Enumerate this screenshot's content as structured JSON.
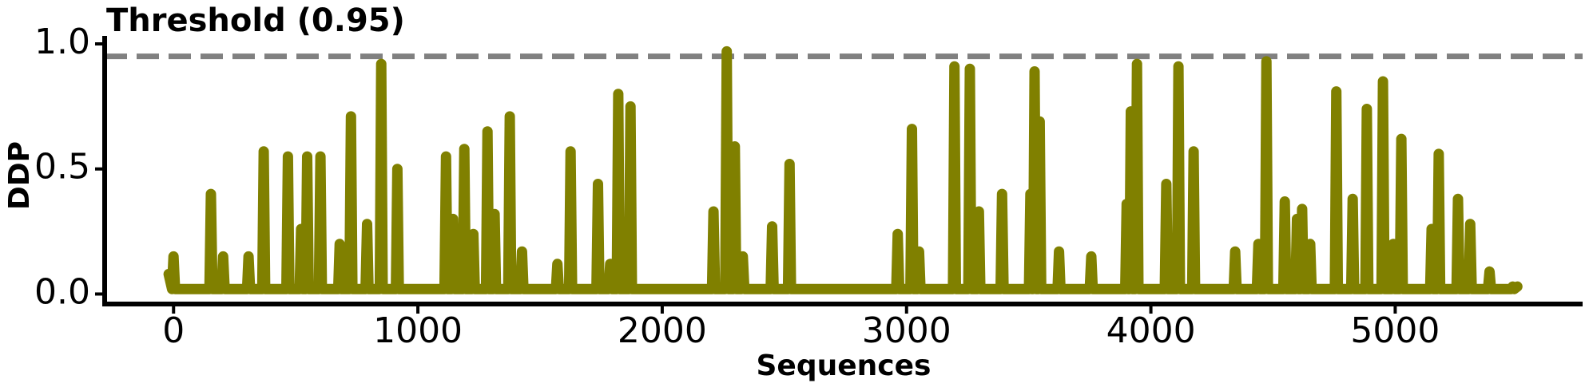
{
  "chart_data": {
    "type": "line",
    "xlabel": "Sequences",
    "ylabel": "DDP",
    "threshold": {
      "value": 0.95,
      "label": "Threshold (0.95)"
    },
    "color": "#808000",
    "xlim": [
      -282,
      5767
    ],
    "ylim": [
      -0.04,
      1.0
    ],
    "xticks": [
      0,
      1000,
      2000,
      3000,
      4000,
      5000
    ],
    "yticks": [
      {
        "value": 0,
        "label": "0.0"
      },
      {
        "value": 0.5,
        "label": "0.5"
      },
      {
        "value": 1,
        "label": "1.0"
      }
    ],
    "x": [
      -20,
      -6,
      0,
      6,
      147,
      153,
      159,
      197,
      203,
      209,
      301,
      307,
      313,
      363,
      369,
      375,
      462,
      468,
      474,
      516,
      522,
      528,
      541,
      547,
      553,
      595,
      601,
      607,
      674,
      680,
      686,
      720,
      726,
      732,
      786,
      792,
      798,
      844,
      850,
      856,
      910,
      916,
      922,
      1109,
      1115,
      1121,
      1138,
      1144,
      1150,
      1184,
      1190,
      1196,
      1221,
      1227,
      1233,
      1279,
      1285,
      1291,
      1308,
      1314,
      1320,
      1370,
      1376,
      1382,
      1420,
      1426,
      1432,
      1565,
      1571,
      1577,
      1619,
      1625,
      1631,
      1731,
      1737,
      1743,
      1781,
      1787,
      1793,
      1814,
      1820,
      1826,
      1864,
      1870,
      1876,
      2204,
      2210,
      2216,
      2258,
      2264,
      2270,
      2291,
      2297,
      2303,
      2324,
      2330,
      2336,
      2444,
      2450,
      2456,
      2515,
      2521,
      2527,
      2958,
      2964,
      2970,
      3016,
      3022,
      3028,
      3045,
      3051,
      3057,
      3190,
      3196,
      3202,
      3253,
      3259,
      3265,
      3290,
      3296,
      3302,
      3385,
      3391,
      3397,
      3501,
      3507,
      3513,
      3518,
      3524,
      3530,
      3539,
      3545,
      3551,
      3618,
      3624,
      3630,
      3750,
      3756,
      3762,
      3895,
      3901,
      3907,
      3912,
      3918,
      3924,
      3937,
      3943,
      3949,
      4057,
      4063,
      4069,
      4107,
      4113,
      4119,
      4169,
      4175,
      4181,
      4339,
      4345,
      4351,
      4434,
      4440,
      4446,
      4467,
      4473,
      4479,
      4542,
      4548,
      4554,
      4592,
      4598,
      4604,
      4613,
      4619,
      4625,
      4646,
      4652,
      4658,
      4753,
      4759,
      4765,
      4820,
      4826,
      4832,
      4878,
      4884,
      4890,
      4944,
      4950,
      4956,
      4986,
      4992,
      4998,
      5019,
      5025,
      5031,
      5143,
      5149,
      5155,
      5172,
      5178,
      5184,
      5251,
      5257,
      5263,
      5301,
      5307,
      5313,
      5380,
      5386,
      5392,
      5475,
      5481,
      5487,
      5500
    ],
    "values": [
      0.08,
      0.02,
      0.15,
      0.02,
      0.02,
      0.4,
      0.02,
      0.02,
      0.15,
      0.02,
      0.02,
      0.15,
      0.02,
      0.02,
      0.57,
      0.02,
      0.02,
      0.55,
      0.02,
      0.02,
      0.26,
      0.02,
      0.02,
      0.55,
      0.02,
      0.02,
      0.55,
      0.02,
      0.02,
      0.2,
      0.02,
      0.02,
      0.71,
      0.02,
      0.02,
      0.28,
      0.02,
      0.02,
      0.92,
      0.02,
      0.02,
      0.5,
      0.02,
      0.02,
      0.55,
      0.02,
      0.02,
      0.3,
      0.02,
      0.02,
      0.58,
      0.02,
      0.02,
      0.24,
      0.02,
      0.02,
      0.65,
      0.02,
      0.02,
      0.32,
      0.02,
      0.02,
      0.71,
      0.02,
      0.02,
      0.17,
      0.02,
      0.02,
      0.12,
      0.02,
      0.02,
      0.57,
      0.02,
      0.02,
      0.44,
      0.02,
      0.02,
      0.12,
      0.02,
      0.02,
      0.8,
      0.02,
      0.02,
      0.75,
      0.02,
      0.02,
      0.33,
      0.02,
      0.02,
      0.97,
      0.02,
      0.02,
      0.59,
      0.02,
      0.02,
      0.15,
      0.02,
      0.02,
      0.27,
      0.02,
      0.02,
      0.52,
      0.02,
      0.02,
      0.24,
      0.02,
      0.02,
      0.66,
      0.02,
      0.02,
      0.17,
      0.02,
      0.02,
      0.91,
      0.02,
      0.02,
      0.9,
      0.02,
      0.02,
      0.33,
      0.02,
      0.02,
      0.4,
      0.02,
      0.02,
      0.4,
      0.02,
      0.02,
      0.89,
      0.02,
      0.02,
      0.69,
      0.02,
      0.02,
      0.17,
      0.02,
      0.02,
      0.15,
      0.02,
      0.02,
      0.36,
      0.02,
      0.02,
      0.73,
      0.02,
      0.02,
      0.92,
      0.02,
      0.02,
      0.44,
      0.02,
      0.02,
      0.91,
      0.02,
      0.02,
      0.57,
      0.02,
      0.02,
      0.17,
      0.02,
      0.02,
      0.2,
      0.02,
      0.02,
      0.93,
      0.02,
      0.02,
      0.37,
      0.02,
      0.02,
      0.3,
      0.02,
      0.02,
      0.34,
      0.02,
      0.02,
      0.2,
      0.02,
      0.02,
      0.81,
      0.02,
      0.02,
      0.38,
      0.02,
      0.02,
      0.74,
      0.02,
      0.02,
      0.85,
      0.02,
      0.02,
      0.2,
      0.02,
      0.02,
      0.62,
      0.02,
      0.02,
      0.26,
      0.02,
      0.02,
      0.56,
      0.02,
      0.02,
      0.38,
      0.02,
      0.02,
      0.28,
      0.02,
      0.02,
      0.09,
      0.02,
      0.02,
      0.03,
      0.02,
      0.03
    ]
  }
}
